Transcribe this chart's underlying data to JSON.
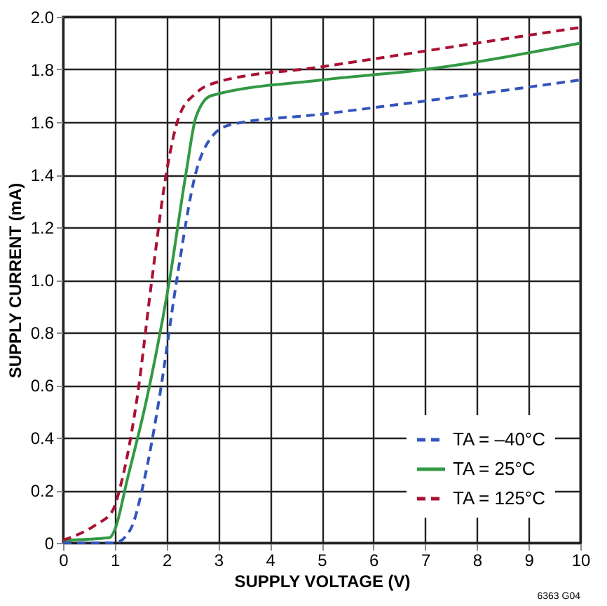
{
  "chart_data": {
    "type": "line",
    "xlabel": "SUPPLY VOLTAGE (V)",
    "ylabel": "SUPPLY CURRENT (mA)",
    "xlim": [
      0,
      10
    ],
    "xticks": [
      0,
      1,
      2,
      3,
      4,
      5,
      6,
      7,
      8,
      9,
      10
    ],
    "ylim": [
      0,
      2
    ],
    "yticks": [
      0,
      0.2,
      0.4,
      0.6,
      0.8,
      {
        "value": 1,
        "label": "1.0"
      },
      1.2,
      1.4,
      1.6,
      1.8,
      {
        "value": 2,
        "label": "2.0"
      }
    ],
    "grid": true,
    "legend": "bottom right",
    "marker": "none",
    "annotations": [
      "6363 G04"
    ],
    "series": [
      {
        "name": "TA = –40°C",
        "color": "#3355bb",
        "line_style": "dashed",
        "x": [
          0,
          1.0,
          1.3,
          1.57,
          1.86,
          2.19,
          2.57,
          2.86,
          3.24,
          5,
          7,
          10
        ],
        "values": [
          0,
          0,
          0.05,
          0.24,
          0.55,
          0.99,
          1.41,
          1.54,
          1.59,
          1.63,
          1.68,
          1.76
        ]
      },
      {
        "name": "TA = 25°C",
        "color": "#339944",
        "line_style": "solid",
        "x": [
          0,
          0.9,
          1.0,
          1.24,
          1.62,
          2.05,
          2.38,
          2.57,
          2.86,
          5,
          7,
          10
        ],
        "values": [
          0.01,
          0.02,
          0.05,
          0.24,
          0.55,
          0.99,
          1.41,
          1.62,
          1.7,
          1.76,
          1.8,
          1.9
        ]
      },
      {
        "name": "TA = 125°C",
        "color": "#aa1133",
        "line_style": "dashed",
        "x": [
          0,
          0.64,
          0.95,
          1.14,
          1.43,
          1.71,
          2.0,
          2.24,
          2.57,
          2.95,
          5,
          7,
          10
        ],
        "values": [
          0.01,
          0.07,
          0.12,
          0.24,
          0.55,
          0.99,
          1.41,
          1.62,
          1.71,
          1.75,
          1.81,
          1.87,
          1.96
        ]
      }
    ]
  }
}
